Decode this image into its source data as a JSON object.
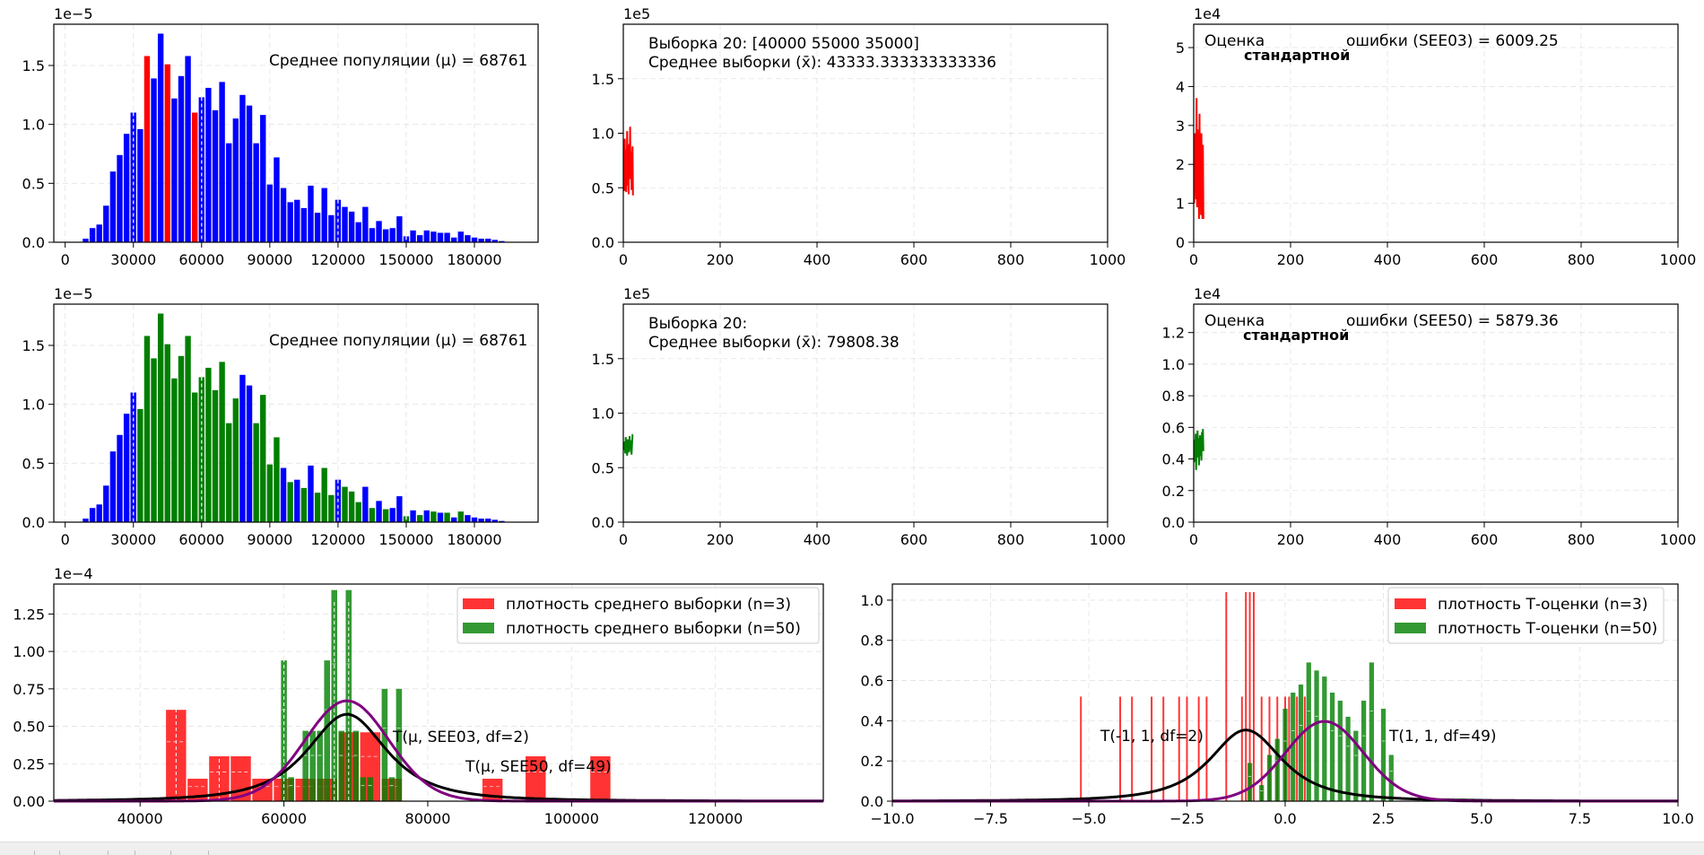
{
  "colors": {
    "red": "#ff0000",
    "blue": "#0000ff",
    "green": "#007f00",
    "purple": "#800080",
    "black": "#000000",
    "legend_red": "#ff0000",
    "legend_green": "#007f00"
  },
  "chart_data": [
    {
      "id": "pop-hist-top",
      "type": "bar",
      "title": "",
      "xlabel": "",
      "ylabel": "",
      "offset_text": "1e−5",
      "xlim": [
        -5000,
        208000
      ],
      "ylim": [
        0,
        1.85
      ],
      "xticks": [
        0,
        30000,
        60000,
        90000,
        120000,
        150000,
        180000
      ],
      "xtick_labels": [
        "0",
        "30000",
        "60000",
        "90000",
        "120000",
        "150000",
        "180000"
      ],
      "yticks": [
        0.0,
        0.5,
        1.0,
        1.5
      ],
      "ytick_labels": [
        "0.0",
        "0.5",
        "1.0",
        "1.5"
      ],
      "bin_width": 3000,
      "x": [
        9000,
        12000,
        15000,
        18000,
        21000,
        24000,
        27000,
        30000,
        33000,
        36000,
        39000,
        42000,
        45000,
        48000,
        51000,
        54000,
        57000,
        60000,
        63000,
        66000,
        69000,
        72000,
        75000,
        78000,
        81000,
        84000,
        87000,
        90000,
        93000,
        96000,
        99000,
        102000,
        105000,
        108000,
        111000,
        114000,
        117000,
        120000,
        123000,
        126000,
        129000,
        132000,
        135000,
        138000,
        141000,
        144000,
        147000,
        150000,
        153000,
        156000,
        159000,
        162000,
        165000,
        168000,
        171000,
        174000,
        177000,
        180000,
        183000,
        186000,
        189000,
        192000,
        195000
      ],
      "values": [
        0.03,
        0.12,
        0.15,
        0.31,
        0.6,
        0.74,
        0.92,
        1.1,
        0.96,
        1.58,
        1.39,
        1.77,
        1.51,
        1.22,
        1.41,
        1.58,
        1.1,
        1.23,
        1.31,
        1.12,
        1.36,
        0.84,
        1.05,
        1.25,
        1.16,
        0.84,
        1.08,
        0.49,
        0.72,
        0.46,
        0.34,
        0.36,
        0.29,
        0.48,
        0.25,
        0.46,
        0.23,
        0.36,
        0.3,
        0.26,
        0.17,
        0.3,
        0.12,
        0.18,
        0.11,
        0.12,
        0.22,
        0.05,
        0.1,
        0.06,
        0.1,
        0.09,
        0.08,
        0.08,
        0.04,
        0.09,
        0.06,
        0.04,
        0.03,
        0.03,
        0.02,
        0.01,
        0.0
      ],
      "highlight_color": "red",
      "highlight_x": [
        36000,
        45000,
        57000
      ],
      "dashed_x": [
        30000,
        60000,
        120000,
        150000
      ],
      "annotation": "Среднее популяции (μ) = 68761"
    },
    {
      "id": "sample-trace-top",
      "type": "line",
      "offset_text": "1e5",
      "xlim": [
        0,
        1000
      ],
      "ylim": [
        0,
        2.0
      ],
      "xticks": [
        0,
        200,
        400,
        600,
        800,
        1000
      ],
      "xtick_labels": [
        "0",
        "200",
        "400",
        "600",
        "800",
        "1000"
      ],
      "yticks": [
        0.0,
        0.5,
        1.0,
        1.5
      ],
      "ytick_labels": [
        "0.0",
        "0.5",
        "1.0",
        "1.5"
      ],
      "color": "red",
      "x": [
        1,
        2,
        3,
        4,
        5,
        6,
        7,
        8,
        9,
        10,
        11,
        12,
        13,
        14,
        15,
        16,
        17,
        18,
        19,
        20
      ],
      "values": [
        0.62,
        0.47,
        0.95,
        0.55,
        0.85,
        0.46,
        0.7,
        1.02,
        0.52,
        0.78,
        0.44,
        0.9,
        0.6,
        1.06,
        0.58,
        0.83,
        0.48,
        0.72,
        0.88,
        0.43
      ],
      "annotation_line1": "Выборка 20: [40000 55000 35000]",
      "annotation_line2": "Среднее выборки (x̄): 43333.333333333336"
    },
    {
      "id": "see-trace-top",
      "type": "line",
      "offset_text": "1e4",
      "xlim": [
        0,
        1000
      ],
      "ylim": [
        0,
        5.6
      ],
      "xticks": [
        0,
        200,
        400,
        600,
        800,
        1000
      ],
      "xtick_labels": [
        "0",
        "200",
        "400",
        "600",
        "800",
        "1000"
      ],
      "yticks": [
        0,
        1,
        2,
        3,
        4,
        5
      ],
      "ytick_labels": [
        "0",
        "1",
        "2",
        "3",
        "4",
        "5"
      ],
      "color": "red",
      "x": [
        1,
        2,
        3,
        4,
        5,
        6,
        7,
        8,
        9,
        10,
        11,
        12,
        13,
        14,
        15,
        16,
        17,
        18,
        19,
        20
      ],
      "values": [
        1.0,
        2.8,
        1.3,
        2.6,
        1.1,
        3.7,
        0.9,
        2.9,
        1.5,
        2.4,
        0.6,
        3.3,
        1.2,
        2.2,
        0.7,
        2.8,
        1.4,
        0.6,
        2.5,
        0.6
      ],
      "annotation_part1": "Оценка",
      "annotation_part2": "стандартной",
      "annotation_part3": "ошибки (SEE03) = 6009.25"
    },
    {
      "id": "pop-hist-bottom",
      "type": "bar",
      "offset_text": "1e−5",
      "xlim": [
        -5000,
        208000
      ],
      "ylim": [
        0,
        1.85
      ],
      "xticks": [
        0,
        30000,
        60000,
        90000,
        120000,
        150000,
        180000
      ],
      "xtick_labels": [
        "0",
        "30000",
        "60000",
        "90000",
        "120000",
        "150000",
        "180000"
      ],
      "yticks": [
        0.0,
        0.5,
        1.0,
        1.5
      ],
      "ytick_labels": [
        "0.0",
        "0.5",
        "1.0",
        "1.5"
      ],
      "bin_width": 3000,
      "x": [
        9000,
        12000,
        15000,
        18000,
        21000,
        24000,
        27000,
        30000,
        33000,
        36000,
        39000,
        42000,
        45000,
        48000,
        51000,
        54000,
        57000,
        60000,
        63000,
        66000,
        69000,
        72000,
        75000,
        78000,
        81000,
        84000,
        87000,
        90000,
        93000,
        96000,
        99000,
        102000,
        105000,
        108000,
        111000,
        114000,
        117000,
        120000,
        123000,
        126000,
        129000,
        132000,
        135000,
        138000,
        141000,
        144000,
        147000,
        150000,
        153000,
        156000,
        159000,
        162000,
        165000,
        168000,
        171000,
        174000,
        177000,
        180000,
        183000,
        186000,
        189000,
        192000,
        195000
      ],
      "values": [
        0.03,
        0.12,
        0.15,
        0.31,
        0.6,
        0.74,
        0.92,
        1.1,
        0.96,
        1.58,
        1.39,
        1.77,
        1.51,
        1.22,
        1.41,
        1.58,
        1.1,
        1.23,
        1.31,
        1.12,
        1.36,
        0.84,
        1.05,
        1.25,
        1.16,
        0.84,
        1.08,
        0.49,
        0.72,
        0.46,
        0.34,
        0.36,
        0.29,
        0.48,
        0.25,
        0.46,
        0.23,
        0.36,
        0.3,
        0.26,
        0.17,
        0.3,
        0.12,
        0.18,
        0.11,
        0.12,
        0.22,
        0.05,
        0.1,
        0.06,
        0.1,
        0.09,
        0.08,
        0.08,
        0.04,
        0.09,
        0.06,
        0.04,
        0.03,
        0.03,
        0.02,
        0.01,
        0.0
      ],
      "highlight_color": "green",
      "highlight_x": [
        33000,
        36000,
        39000,
        42000,
        45000,
        48000,
        51000,
        54000,
        57000,
        60000,
        63000,
        66000,
        69000,
        72000,
        75000,
        84000,
        87000,
        90000,
        93000,
        99000,
        105000,
        111000,
        114000,
        117000,
        123000,
        126000,
        129000,
        135000,
        141000,
        150000,
        156000,
        162000,
        168000,
        174000
      ],
      "dashed_x": [
        30000,
        60000,
        120000,
        150000
      ],
      "annotation": "Среднее популяции (μ) = 68761"
    },
    {
      "id": "sample-trace-bottom",
      "type": "line",
      "offset_text": "1e5",
      "xlim": [
        0,
        1000
      ],
      "ylim": [
        0,
        2.0
      ],
      "xticks": [
        0,
        200,
        400,
        600,
        800,
        1000
      ],
      "xtick_labels": [
        "0",
        "200",
        "400",
        "600",
        "800",
        "1000"
      ],
      "yticks": [
        0.0,
        0.5,
        1.0,
        1.5
      ],
      "ytick_labels": [
        "0.0",
        "0.5",
        "1.0",
        "1.5"
      ],
      "color": "green",
      "x": [
        1,
        2,
        3,
        4,
        5,
        6,
        7,
        8,
        9,
        10,
        11,
        12,
        13,
        14,
        15,
        16,
        17,
        18,
        19,
        20
      ],
      "values": [
        0.7,
        0.66,
        0.74,
        0.63,
        0.78,
        0.69,
        0.72,
        0.61,
        0.76,
        0.67,
        0.73,
        0.64,
        0.79,
        0.7,
        0.66,
        0.75,
        0.62,
        0.71,
        0.8,
        0.8
      ],
      "annotation_line1": "Выборка 20:",
      "annotation_line2": "Среднее выборки (x̄): 79808.38"
    },
    {
      "id": "see-trace-bottom",
      "type": "line",
      "offset_text": "1e4",
      "xlim": [
        0,
        1000
      ],
      "ylim": [
        0,
        1.38
      ],
      "xticks": [
        0,
        200,
        400,
        600,
        800,
        1000
      ],
      "xtick_labels": [
        "0",
        "200",
        "400",
        "600",
        "800",
        "1000"
      ],
      "yticks": [
        0.0,
        0.2,
        0.4,
        0.6,
        0.8,
        1.0,
        1.2
      ],
      "ytick_labels": [
        "0.0",
        "0.2",
        "0.4",
        "0.6",
        "0.8",
        "1.0",
        "1.2"
      ],
      "color": "green",
      "x": [
        1,
        2,
        3,
        4,
        5,
        6,
        7,
        8,
        9,
        10,
        11,
        12,
        13,
        14,
        15,
        16,
        17,
        18,
        19,
        20
      ],
      "values": [
        0.38,
        0.52,
        0.45,
        0.56,
        0.33,
        0.5,
        0.41,
        0.58,
        0.44,
        0.53,
        0.36,
        0.49,
        0.55,
        0.42,
        0.51,
        0.39,
        0.57,
        0.46,
        0.59,
        0.45
      ],
      "annotation_part1": "Оценка",
      "annotation_part2": "стандартной",
      "annotation_part3": "ошибки (SEE50) = 5879.36"
    },
    {
      "id": "mean-density",
      "type": "bar",
      "offset_text": "1e−4",
      "xlim": [
        28000,
        135000
      ],
      "ylim": [
        0,
        1.45
      ],
      "xticks": [
        40000,
        60000,
        80000,
        100000,
        120000
      ],
      "xtick_labels": [
        "40000",
        "60000",
        "80000",
        "100000",
        "120000"
      ],
      "yticks": [
        0.0,
        0.25,
        0.5,
        0.75,
        1.0,
        1.25
      ],
      "ytick_labels": [
        "0.00",
        "0.25",
        "0.50",
        "0.75",
        "1.00",
        "1.25"
      ],
      "series": [
        {
          "name": "плотность среднего выборки (n=3)",
          "color": "red",
          "alpha": 0.8,
          "bin_width": 2800,
          "x": [
            45000,
            48000,
            51000,
            54000,
            57000,
            60000,
            63000,
            66000,
            69000,
            72000,
            75000,
            89000,
            95000,
            104000
          ],
          "values": [
            0.61,
            0.15,
            0.3,
            0.3,
            0.15,
            0.15,
            0.15,
            0.15,
            0.46,
            0.46,
            0.15,
            0.15,
            0.3,
            0.3
          ],
          "dashed_x": [
            45000,
            51000
          ]
        },
        {
          "name": "плотность среднего выборки (n=50)",
          "color": "green",
          "alpha": 0.8,
          "bin_width": 820,
          "x": [
            60000,
            61000,
            62000,
            63000,
            64000,
            65000,
            66000,
            67000,
            68000,
            69000,
            70000,
            71000,
            72000,
            73000,
            74000,
            75000,
            76000
          ],
          "values": [
            0.94,
            0.16,
            0.0,
            0.47,
            0.47,
            0.47,
            0.94,
            1.41,
            0.47,
            1.41,
            0.47,
            0.16,
            0.16,
            0.0,
            0.75,
            0.16,
            0.75
          ],
          "dashed_x": [
            60000,
            67000,
            69000
          ]
        }
      ],
      "curves": [
        {
          "name": "T(μ, SEE03, df=2)",
          "color": "black",
          "mu": 68761,
          "scale": 6009.25,
          "df": 2,
          "peak": 0.58
        },
        {
          "name": "T(μ, SEE50, df=49)",
          "color": "purple",
          "mu": 68761,
          "scale": 5879.36,
          "df": 49,
          "peak": 0.67
        }
      ],
      "curve_label_1": "T(μ, SEE03, df=2)",
      "curve_label_2": "T(μ, SEE50, df=49)",
      "legend": [
        "плотность среднего выборки (n=3)",
        "плотность среднего выборки (n=50)"
      ],
      "legend_position": "top-right"
    },
    {
      "id": "t-density",
      "type": "bar",
      "offset_text": "",
      "xlim": [
        -10,
        10
      ],
      "ylim": [
        0,
        1.08
      ],
      "xticks": [
        -10,
        -7.5,
        -5,
        -2.5,
        0,
        2.5,
        5,
        7.5,
        10
      ],
      "xtick_labels": [
        "−10.0",
        "−7.5",
        "−5.0",
        "−2.5",
        "0.0",
        "2.5",
        "5.0",
        "7.5",
        "10.0"
      ],
      "yticks": [
        0.0,
        0.2,
        0.4,
        0.6,
        0.8,
        1.0
      ],
      "ytick_labels": [
        "0.0",
        "0.2",
        "0.4",
        "0.6",
        "0.8",
        "1.0"
      ],
      "series": [
        {
          "name": "плотность Т-оценки (n=3)",
          "color": "red",
          "alpha": 0.8,
          "bin_width": 0.045,
          "x": [
            -5.2,
            -4.2,
            -3.9,
            -3.4,
            -3.1,
            -2.7,
            -2.5,
            -2.2,
            -2.0,
            -1.5,
            -1.1,
            -1.0,
            -0.9,
            -0.8,
            -0.6,
            -0.4,
            -0.2,
            0.0,
            0.1,
            0.3,
            0.5
          ],
          "values": [
            0.52,
            0.52,
            0.52,
            0.52,
            0.52,
            0.52,
            0.52,
            0.52,
            0.52,
            1.04,
            0.52,
            1.04,
            1.04,
            1.04,
            0.52,
            0.52,
            0.52,
            0.52,
            0.52,
            0.52,
            0.52
          ]
        },
        {
          "name": "плотность Т-оценки (n=50)",
          "color": "green",
          "alpha": 0.8,
          "bin_width": 0.12,
          "x": [
            -0.9,
            -0.6,
            -0.4,
            -0.2,
            0.0,
            0.2,
            0.4,
            0.6,
            0.8,
            1.0,
            1.2,
            1.4,
            1.6,
            1.8,
            2.0,
            2.2,
            2.5,
            2.7
          ],
          "values": [
            0.19,
            0.08,
            0.23,
            0.31,
            0.46,
            0.54,
            0.58,
            0.69,
            0.65,
            0.62,
            0.54,
            0.5,
            0.42,
            0.35,
            0.5,
            0.69,
            0.46,
            0.23
          ]
        }
      ],
      "curves": [
        {
          "name": "T(-1, 1, df=2)",
          "color": "black",
          "mu": -1,
          "scale": 1,
          "df": 2,
          "peak": 0.354
        },
        {
          "name": "T(1, 1, df=49)",
          "color": "purple",
          "mu": 1,
          "scale": 1,
          "df": 49,
          "peak": 0.397
        }
      ],
      "curve_label_1": "T(-1, 1, df=2)",
      "curve_label_2": "T(1, 1, df=49)",
      "legend": [
        "плотность Т-оценки (n=3)",
        "плотность Т-оценки (n=50)"
      ],
      "legend_position": "top-right"
    }
  ]
}
